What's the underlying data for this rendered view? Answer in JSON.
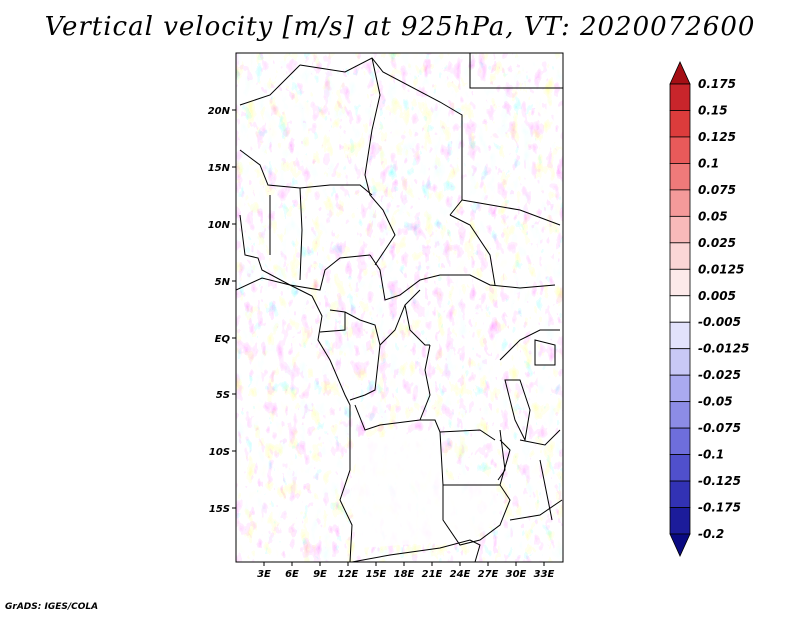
{
  "title": "Vertical velocity [m/s] at 925hPa, VT: 2020072600",
  "credit": "GrADS: IGES/COLA",
  "map": {
    "lon_labels": [
      "3E",
      "6E",
      "9E",
      "12E",
      "15E",
      "18E",
      "21E",
      "24E",
      "27E",
      "30E",
      "33E"
    ],
    "lat_labels": [
      "20N",
      "15N",
      "10N",
      "5N",
      "EQ",
      "5S",
      "10S",
      "15S"
    ],
    "lon_range": [
      0,
      35
    ],
    "lat_range": [
      -20,
      25
    ]
  },
  "colorbar": {
    "levels": [
      "0.175",
      "0.15",
      "0.125",
      "0.1",
      "0.075",
      "0.05",
      "0.025",
      "0.0125",
      "0.005",
      "-0.005",
      "-0.0125",
      "-0.025",
      "-0.05",
      "-0.075",
      "-0.1",
      "-0.125",
      "-0.175",
      "-0.2"
    ],
    "colors": [
      "#a50f15",
      "#c8252b",
      "#dc3c3c",
      "#e85a5a",
      "#ef7a7a",
      "#f49a9a",
      "#f8baba",
      "#fbd6d6",
      "#fdeaea",
      "#ffffff",
      "#e2e2fb",
      "#c8c8f6",
      "#aaaaf0",
      "#8c8ce6",
      "#6e6edc",
      "#5050cc",
      "#3232b4",
      "#1c1c9a",
      "#0a0a82"
    ]
  },
  "colors": {
    "positive": "#e8646e",
    "negative": "#6464dc",
    "border": "#000000"
  }
}
